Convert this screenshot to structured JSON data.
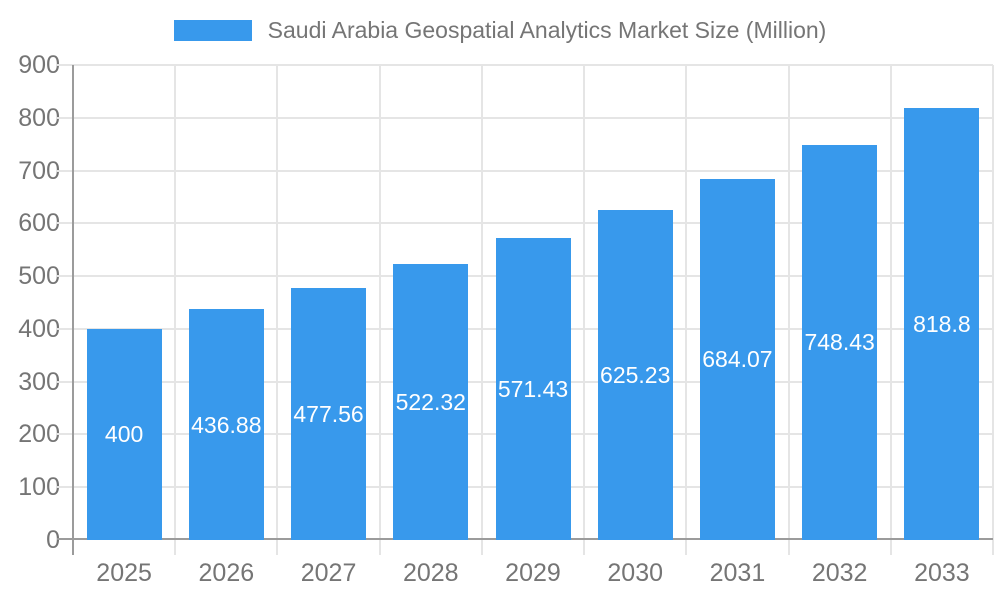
{
  "colors": {
    "bar": "#3899EC",
    "grid": "#e5e5e5",
    "axis": "#9b9b9b",
    "tick_text": "#757575",
    "title_text": "#757575",
    "bar_label_text": "#ffffff",
    "background": "#ffffff"
  },
  "legend": {
    "swatch": "bar-color-swatch",
    "label": "Saudi Arabia Geospatial Analytics Market Size (Million)"
  },
  "chart_data": {
    "type": "bar",
    "title": "Saudi Arabia Geospatial Analytics Market Size (Million)",
    "categories": [
      "2025",
      "2026",
      "2027",
      "2028",
      "2029",
      "2030",
      "2031",
      "2032",
      "2033"
    ],
    "values": [
      400,
      436.88,
      477.56,
      522.32,
      571.43,
      625.23,
      684.07,
      748.43,
      818.8
    ],
    "value_labels": [
      "400",
      "436.88",
      "477.56",
      "522.32",
      "571.43",
      "625.23",
      "684.07",
      "748.43",
      "818.8"
    ],
    "xlabel": "",
    "ylabel": "",
    "ylim": [
      0,
      900
    ],
    "yticks": [
      0,
      100,
      200,
      300,
      400,
      500,
      600,
      700,
      800,
      900
    ],
    "grid": true,
    "legend_position": "top-center",
    "bar_label_position": "middle-of-bar"
  }
}
